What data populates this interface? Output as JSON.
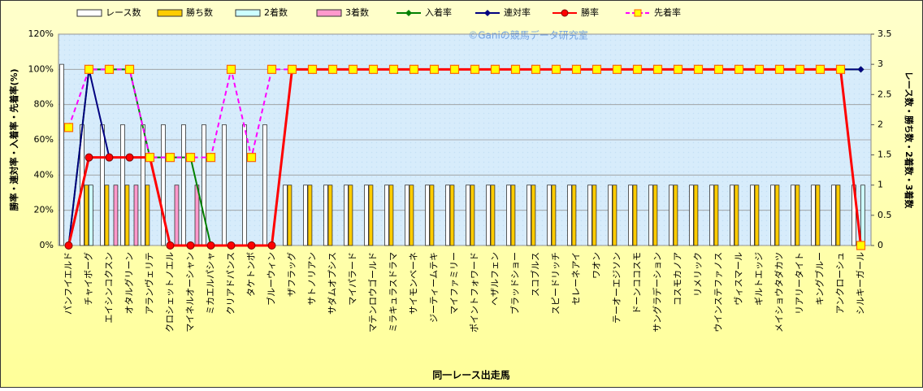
{
  "chart_data": {
    "type": "bar_line",
    "x_label": "同一レース出走馬",
    "y_label": "勝率・連対率・入着率・先着率(%)",
    "y2_label": "レース数・勝ち数・2着数・3着数",
    "watermark": "©Ganiの競馬データ研究室",
    "categories": [
      "パンフイエルド",
      "チャイボーグ",
      "エイシンコクスン",
      "オタルグリーン",
      "アランヴェリテ",
      "クロシェットノエル",
      "マイネルオーシャン",
      "ミカエルパシャ",
      "クリアドパンス",
      "タケトンボ",
      "ブルーウィン",
      "ザフラッグ",
      "サトノリアン",
      "サダムオプシス",
      "マイパラード",
      "マテンロウゴールド",
      "ミラキュラスドラマ",
      "サイモンベーネ",
      "ジーティームテキ",
      "マイファミリー",
      "ポイントフォワード",
      "ヘザルフェン",
      "ブラッドショー",
      "スコブルス",
      "スピードリッチ",
      "セレーネアイ",
      "ワオン",
      "テーオーエジソン",
      "ドーンココスモ",
      "サングラデーション",
      "コスモカノア",
      "リメリック",
      "ウインステファノス",
      "ヴィスマール",
      "ギルトエッジ",
      "メイショウタダカツ",
      "リアリータイト",
      "キングブルー",
      "アンクローシュ",
      "シルキーガール"
    ],
    "ylim": [
      0,
      120
    ],
    "yticks": [
      {
        "value": 0,
        "label": "0%"
      },
      {
        "value": 20,
        "label": "20%"
      },
      {
        "value": 40,
        "label": "40%"
      },
      {
        "value": 60,
        "label": "60%"
      },
      {
        "value": 80,
        "label": "80%"
      },
      {
        "value": 100,
        "label": "100%"
      },
      {
        "value": 120,
        "label": "120%"
      }
    ],
    "y2lim": [
      0,
      3.5
    ],
    "y2ticks": [
      0,
      0.5,
      1,
      1.5,
      2,
      2.5,
      3,
      3.5
    ],
    "grid": true,
    "series": [
      {
        "name": "レース数",
        "kind": "bar",
        "axis": "y2",
        "color": "#ffffff",
        "values": [
          3,
          2,
          2,
          2,
          2,
          2,
          2,
          2,
          2,
          2,
          2,
          1,
          1,
          1,
          1,
          1,
          1,
          1,
          1,
          1,
          1,
          1,
          1,
          1,
          1,
          1,
          1,
          1,
          1,
          1,
          1,
          1,
          1,
          1,
          1,
          1,
          1,
          1,
          1,
          1
        ]
      },
      {
        "name": "勝ち数",
        "kind": "bar",
        "axis": "y2",
        "color": "#ffcc00",
        "values": [
          0,
          1,
          1,
          1,
          1,
          0,
          0,
          0,
          0,
          0,
          0,
          1,
          1,
          1,
          1,
          1,
          1,
          1,
          1,
          1,
          1,
          1,
          1,
          1,
          1,
          1,
          1,
          1,
          1,
          1,
          1,
          1,
          1,
          1,
          1,
          1,
          1,
          1,
          1,
          0
        ]
      },
      {
        "name": "2着数",
        "kind": "bar",
        "axis": "y2",
        "color": "#ccffff",
        "values": [
          0,
          1,
          0,
          0,
          0,
          0,
          0,
          0,
          0,
          0,
          0,
          0,
          0,
          0,
          0,
          0,
          0,
          0,
          0,
          0,
          0,
          0,
          0,
          0,
          0,
          0,
          0,
          0,
          0,
          0,
          0,
          0,
          0,
          0,
          0,
          0,
          0,
          0,
          0,
          1
        ]
      },
      {
        "name": "3着数",
        "kind": "bar",
        "axis": "y2",
        "color": "#ff99cc",
        "values": [
          0,
          0,
          1,
          1,
          0,
          1,
          1,
          0,
          0,
          0,
          0,
          0,
          0,
          0,
          0,
          0,
          0,
          0,
          0,
          0,
          0,
          0,
          0,
          0,
          0,
          0,
          0,
          0,
          0,
          0,
          0,
          0,
          0,
          0,
          0,
          0,
          0,
          0,
          0,
          0
        ]
      },
      {
        "name": "入着率",
        "kind": "line",
        "color": "#008000",
        "marker": "diamond",
        "values": [
          0,
          100,
          100,
          100,
          50,
          50,
          50,
          0,
          0,
          0,
          0,
          100,
          100,
          100,
          100,
          100,
          100,
          100,
          100,
          100,
          100,
          100,
          100,
          100,
          100,
          100,
          100,
          100,
          100,
          100,
          100,
          100,
          100,
          100,
          100,
          100,
          100,
          100,
          100,
          100
        ]
      },
      {
        "name": "連対率",
        "kind": "line",
        "color": "#000080",
        "marker": "diamond",
        "values": [
          0,
          100,
          50,
          50,
          50,
          0,
          0,
          0,
          0,
          0,
          0,
          100,
          100,
          100,
          100,
          100,
          100,
          100,
          100,
          100,
          100,
          100,
          100,
          100,
          100,
          100,
          100,
          100,
          100,
          100,
          100,
          100,
          100,
          100,
          100,
          100,
          100,
          100,
          100,
          100
        ]
      },
      {
        "name": "勝率",
        "kind": "line",
        "color": "#ff0000",
        "marker": "circle",
        "values": [
          0,
          50,
          50,
          50,
          50,
          0,
          0,
          0,
          0,
          0,
          0,
          100,
          100,
          100,
          100,
          100,
          100,
          100,
          100,
          100,
          100,
          100,
          100,
          100,
          100,
          100,
          100,
          100,
          100,
          100,
          100,
          100,
          100,
          100,
          100,
          100,
          100,
          100,
          100,
          0
        ]
      },
      {
        "name": "先着率",
        "kind": "line",
        "color": "#ff00ff",
        "marker": "square",
        "dashed": true,
        "values": [
          67,
          100,
          100,
          100,
          50,
          50,
          50,
          50,
          100,
          50,
          100,
          100,
          100,
          100,
          100,
          100,
          100,
          100,
          100,
          100,
          100,
          100,
          100,
          100,
          100,
          100,
          100,
          100,
          100,
          100,
          100,
          100,
          100,
          100,
          100,
          100,
          100,
          100,
          100,
          0
        ]
      }
    ]
  }
}
